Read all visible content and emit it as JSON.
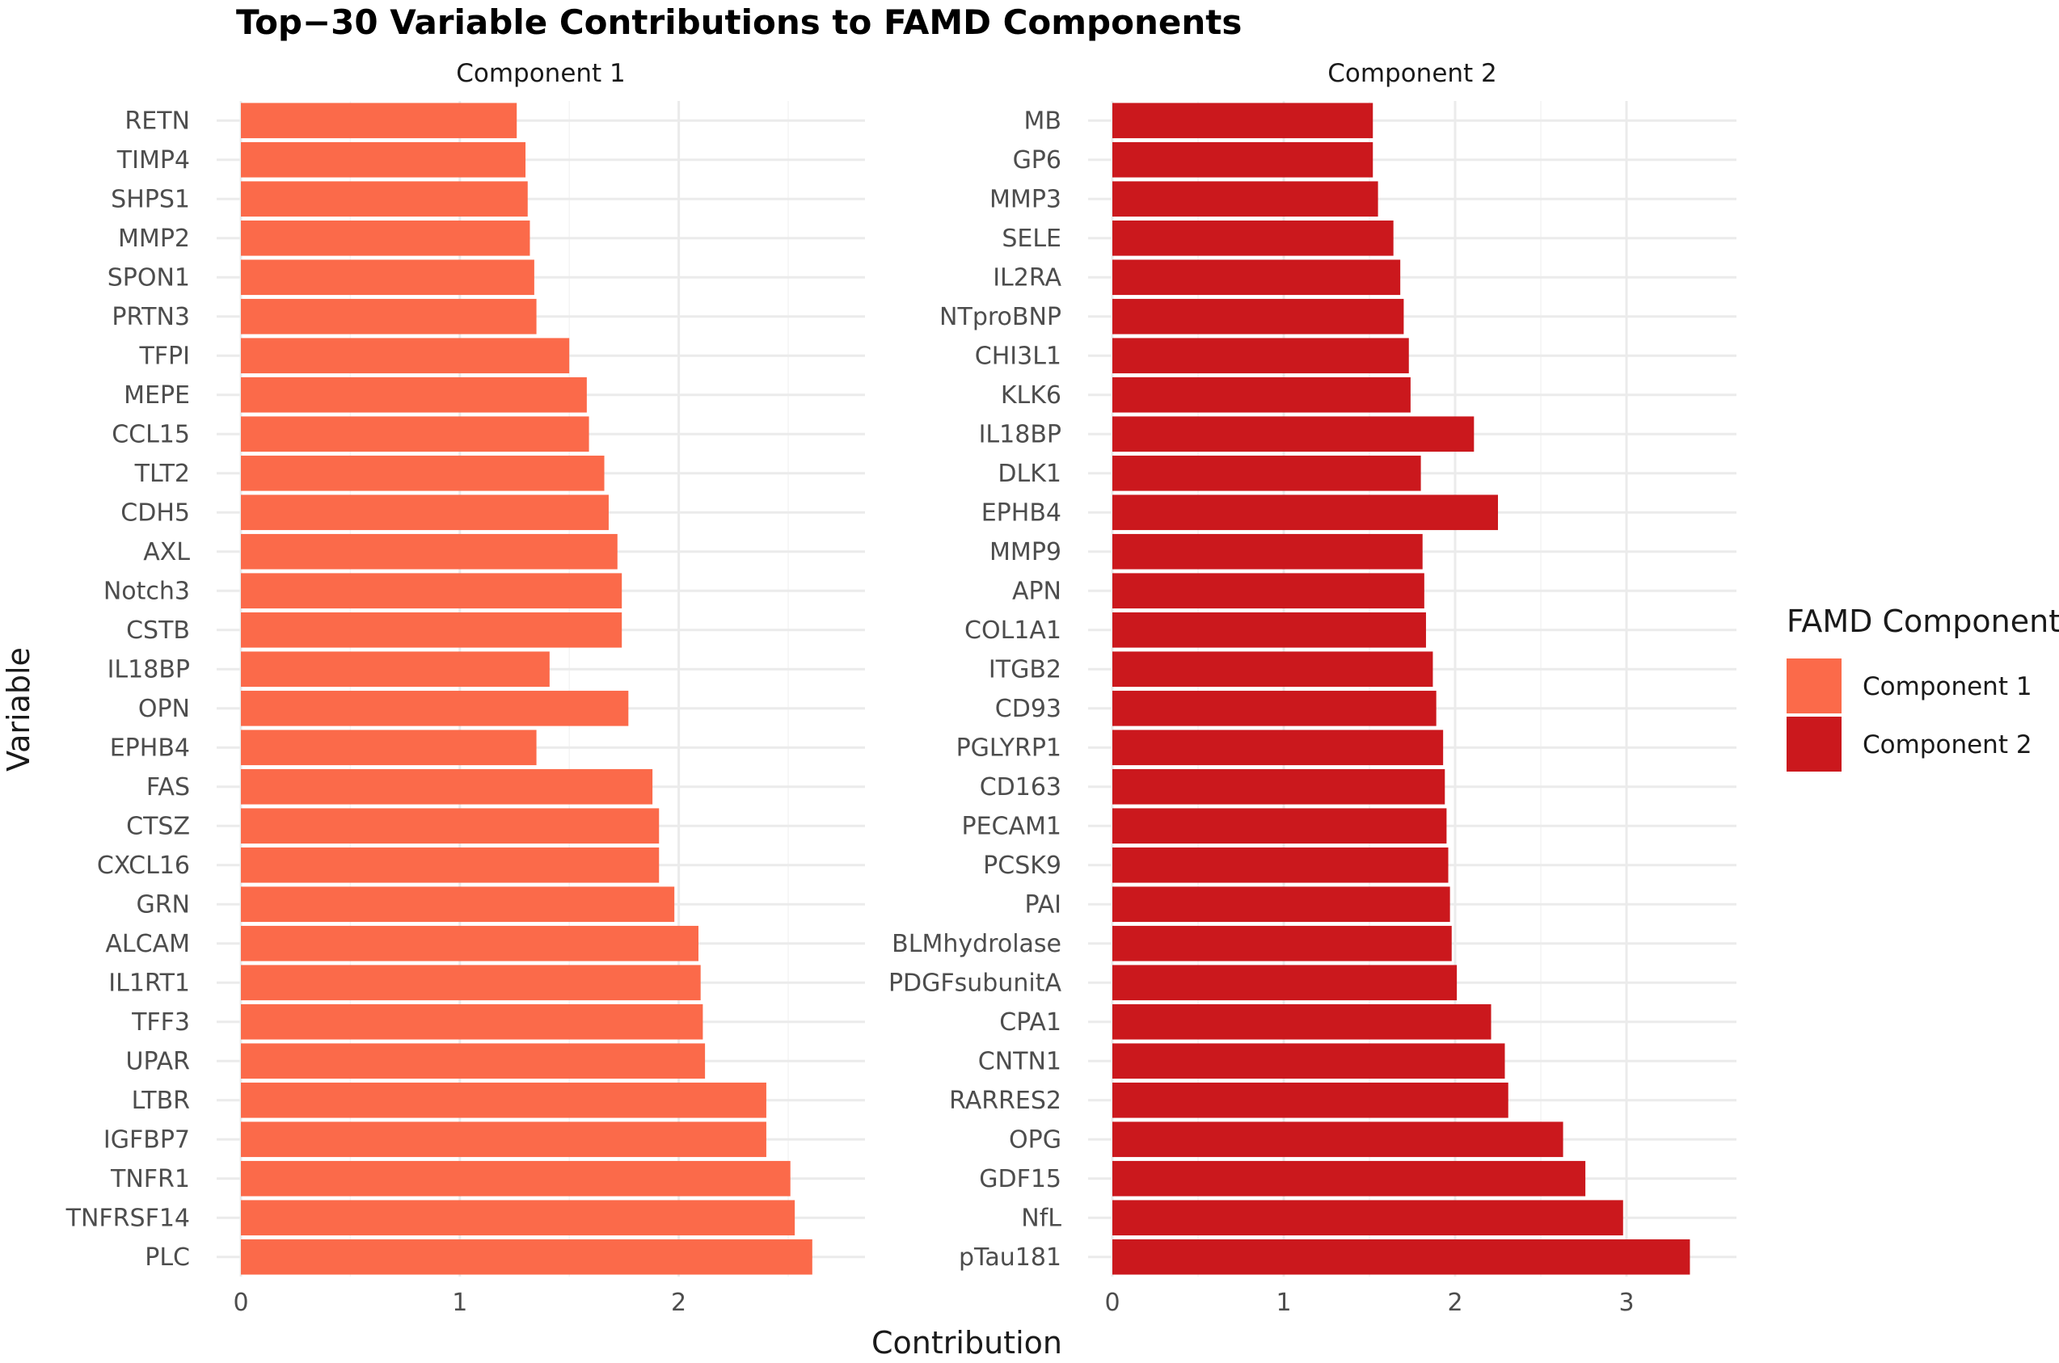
{
  "chart_data": {
    "type": "bar",
    "orientation": "horizontal",
    "title": "Top−30 Variable Contributions to FAMD Components",
    "xlabel": "Contribution",
    "ylabel": "Variable",
    "grid": true,
    "legend": {
      "title": "FAMD Component",
      "placement": "right",
      "entries": [
        {
          "name": "Component 1",
          "color": "#FB6A4A"
        },
        {
          "name": "Component 2",
          "color": "#CB181D"
        }
      ]
    },
    "facets": [
      {
        "name": "Component 1",
        "color": "#FB6A4A",
        "xlim": [
          0,
          2.74
        ],
        "xticks": [
          0,
          1,
          2
        ],
        "categories": [
          "RETN",
          "TIMP4",
          "SHPS1",
          "MMP2",
          "SPON1",
          "PRTN3",
          "TFPI",
          "MEPE",
          "CCL15",
          "TLT2",
          "CDH5",
          "AXL",
          "Notch3",
          "CSTB",
          "IL18BP",
          "OPN",
          "EPHB4",
          "FAS",
          "CTSZ",
          "CXCL16",
          "GRN",
          "ALCAM",
          "IL1RT1",
          "TFF3",
          "UPAR",
          "LTBR",
          "IGFBP7",
          "TNFR1",
          "TNFRSF14",
          "PLC"
        ],
        "values": [
          1.26,
          1.3,
          1.31,
          1.32,
          1.34,
          1.35,
          1.5,
          1.58,
          1.59,
          1.66,
          1.68,
          1.72,
          1.74,
          1.74,
          1.41,
          1.77,
          1.35,
          1.88,
          1.91,
          1.91,
          1.98,
          2.09,
          2.1,
          2.11,
          2.12,
          2.4,
          2.4,
          2.51,
          2.53,
          2.61
        ]
      },
      {
        "name": "Component 2",
        "color": "#CB181D",
        "xlim": [
          0,
          3.5
        ],
        "xticks": [
          0,
          1,
          2,
          3
        ],
        "categories": [
          "MB",
          "GP6",
          "MMP3",
          "SELE",
          "IL2RA",
          "NTproBNP",
          "CHI3L1",
          "KLK6",
          "IL18BP",
          "DLK1",
          "EPHB4",
          "MMP9",
          "APN",
          "COL1A1",
          "ITGB2",
          "CD93",
          "PGLYRP1",
          "CD163",
          "PECAM1",
          "PCSK9",
          "PAI",
          "BLMhydrolase",
          "PDGFsubunitA",
          "CPA1",
          "CNTN1",
          "RARRES2",
          "OPG",
          "GDF15",
          "NfL",
          "pTau181"
        ],
        "values": [
          1.52,
          1.52,
          1.55,
          1.64,
          1.68,
          1.7,
          1.73,
          1.74,
          2.11,
          1.8,
          2.25,
          1.81,
          1.82,
          1.83,
          1.87,
          1.89,
          1.93,
          1.94,
          1.95,
          1.96,
          1.97,
          1.98,
          2.01,
          2.21,
          2.29,
          2.31,
          2.63,
          2.76,
          2.98,
          3.37
        ]
      }
    ]
  }
}
